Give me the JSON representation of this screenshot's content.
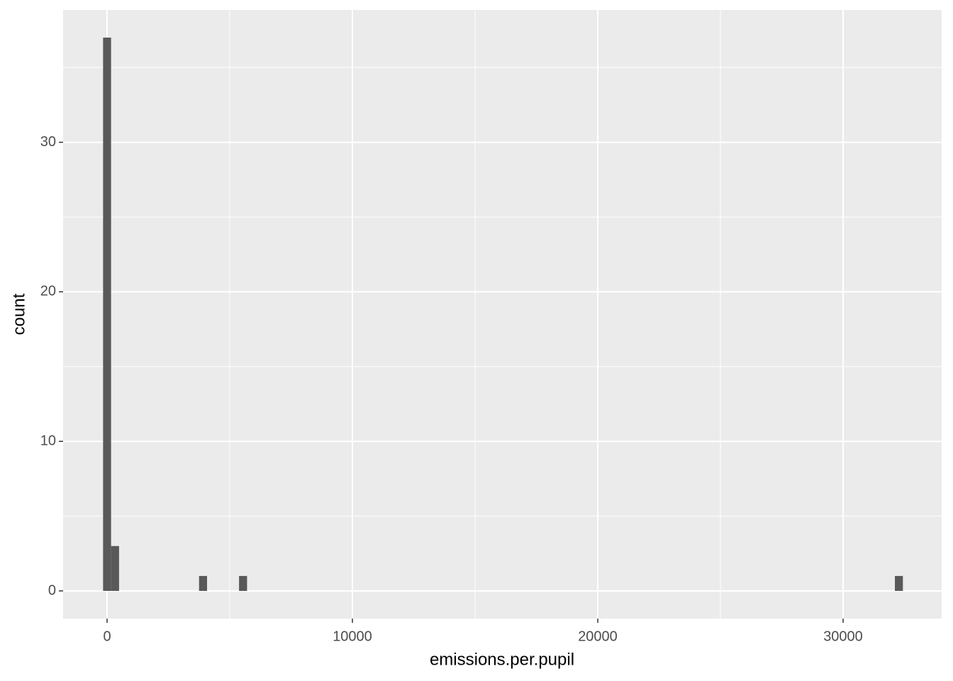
{
  "chart_data": {
    "type": "histogram",
    "x_label": "emissions.per.pupil",
    "y_label": "count",
    "bins": [
      -163,
      163,
      489,
      815,
      1141,
      1467,
      1793,
      2119,
      2445,
      2771,
      3097,
      3423,
      3749,
      4075,
      4401,
      4727,
      5053,
      5379,
      5705,
      6031,
      6357,
      6683,
      7009,
      7335,
      7661,
      7987,
      8313,
      8639,
      8965,
      9291,
      9617,
      9943,
      10269,
      10595,
      10921,
      11247,
      11573,
      11899,
      12225,
      12551,
      12877,
      13203,
      13529,
      13855,
      14181,
      14507,
      14833,
      15159,
      15485,
      15811,
      16137,
      16463,
      16789,
      17115,
      17441,
      17767,
      18093,
      18419,
      18745,
      19071,
      19397,
      19723,
      20049,
      20375,
      20701,
      21027,
      21353,
      21679,
      22005,
      22331,
      22657,
      22983,
      23309,
      23635,
      23961,
      24287,
      24613,
      24939,
      25265,
      25591,
      25917,
      26243,
      26569,
      26895,
      27221,
      27547,
      27873,
      28199,
      28525,
      28851,
      29177,
      29503,
      29829,
      30155,
      30481,
      30807,
      31133,
      31459,
      31785,
      32111,
      32437
    ],
    "values": [
      37,
      3,
      0,
      0,
      0,
      0,
      0,
      0,
      0,
      0,
      0,
      0,
      1,
      0,
      0,
      0,
      0,
      1,
      0,
      0,
      0,
      0,
      0,
      0,
      0,
      0,
      0,
      0,
      0,
      0,
      0,
      0,
      0,
      0,
      0,
      0,
      0,
      0,
      0,
      0,
      0,
      0,
      0,
      0,
      0,
      0,
      0,
      0,
      0,
      0,
      0,
      0,
      0,
      0,
      0,
      0,
      0,
      0,
      0,
      0,
      0,
      0,
      0,
      0,
      0,
      0,
      0,
      0,
      0,
      0,
      0,
      0,
      0,
      0,
      0,
      0,
      0,
      0,
      0,
      0,
      0,
      0,
      0,
      0,
      0,
      0,
      0,
      0,
      0,
      0,
      0,
      0,
      0,
      0,
      0,
      0,
      0,
      0,
      0,
      1
    ],
    "color": "#595959",
    "xlim": [
      -1792,
      34017
    ],
    "ylim": [
      -1.85,
      38.85
    ],
    "xticks": [
      0,
      10000,
      20000,
      30000
    ],
    "yticks": [
      0,
      10,
      20,
      30
    ],
    "x_minor_grid": [
      5000,
      15000,
      25000
    ],
    "y_minor_grid": [
      5,
      15,
      25,
      35
    ],
    "grid": true,
    "panel_color": "#ebebeb"
  }
}
